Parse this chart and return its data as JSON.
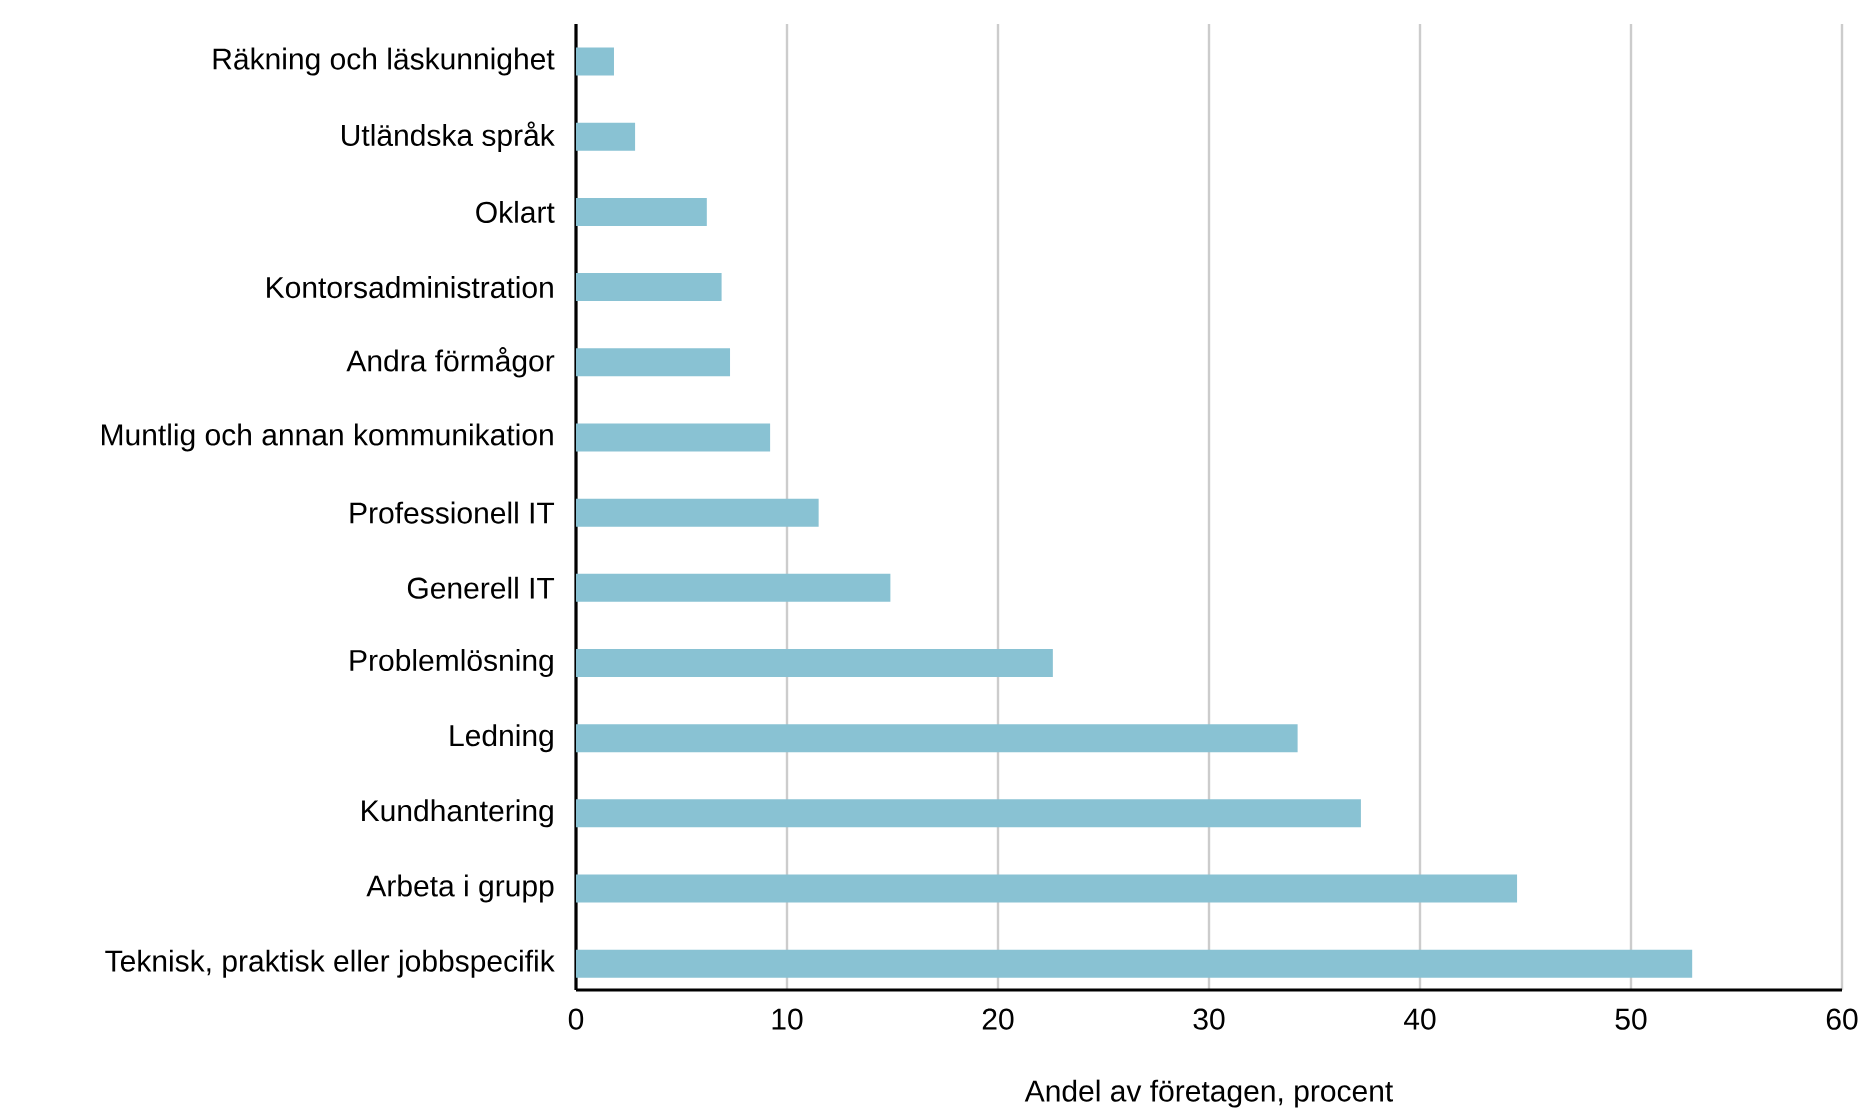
{
  "chart_data": {
    "type": "bar",
    "orientation": "horizontal",
    "xlabel": "Andel av företagen, procent",
    "categories": [
      "Räkning och läskunnighet",
      "Utländska språk",
      "Oklart",
      "Kontorsadministration",
      "Andra förmågor",
      "Muntlig och annan kommunikation",
      "Professionell IT",
      "Generell IT",
      "Problemlösning",
      "Ledning",
      "Kundhantering",
      "Arbeta i grupp",
      "Teknisk, praktisk eller jobbspecifik"
    ],
    "values": [
      1.8,
      2.8,
      6.2,
      6.9,
      7.3,
      9.2,
      11.5,
      14.9,
      22.6,
      34.2,
      37.2,
      44.6,
      52.9
    ],
    "color": "#89c2d3",
    "xlim": [
      0,
      60
    ],
    "xticks": [
      0,
      10,
      20,
      30,
      40,
      50,
      60
    ],
    "grid": "x"
  }
}
